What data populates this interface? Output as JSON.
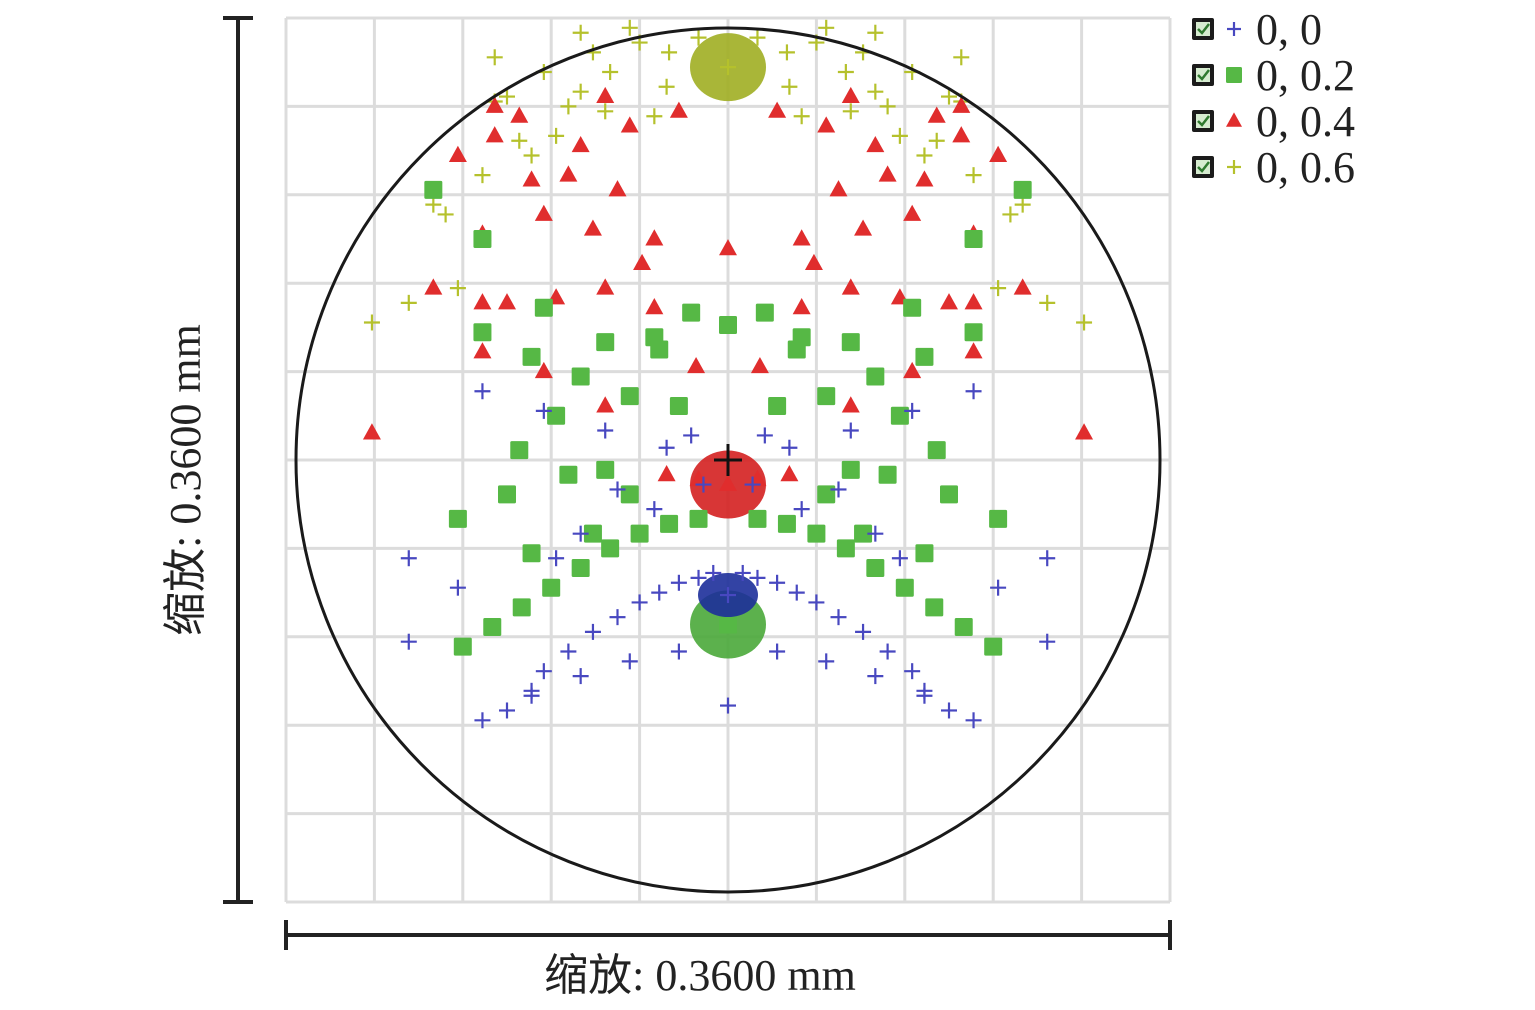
{
  "chart_data": {
    "type": "scatter",
    "title": "",
    "xlabel": "缩放: 0.3600 mm",
    "ylabel": "缩放: 0.3600 mm",
    "units": "mm",
    "scale_mm": 0.36,
    "grid": true,
    "grid_divisions": 10,
    "airy_circle": true,
    "legend_position": "top-right",
    "xlim": [
      -0.18,
      0.18
    ],
    "ylim": [
      -0.18,
      0.18
    ],
    "series": [
      {
        "name": "0, 0",
        "marker": "plus",
        "color": "#4848c0",
        "core_color": "#1d2f9a",
        "x": [
          0,
          -0.006,
          0.006,
          -0.012,
          0.012,
          -0.02,
          0.02,
          -0.028,
          0.028,
          -0.036,
          0.036,
          -0.045,
          0.045,
          -0.055,
          0.055,
          -0.065,
          0.065,
          -0.075,
          0.075,
          -0.08,
          0.08,
          -0.09,
          0.09,
          -0.11,
          0.11,
          -0.02,
          0.02,
          -0.04,
          0.04,
          -0.06,
          0.06,
          -0.08,
          0.08,
          -0.1,
          0.1,
          -0.13,
          0.13,
          0,
          -0.025,
          0.025,
          -0.05,
          0.05,
          -0.075,
          0.075,
          -0.1,
          0.1,
          -0.06,
          0.06,
          -0.03,
          0.03,
          -0.045,
          0.045,
          -0.07,
          0.07,
          -0.13,
          0.13,
          -0.01,
          0.01,
          -0.015,
          0.015
        ],
        "y": [
          -0.055,
          -0.046,
          -0.046,
          -0.048,
          -0.048,
          -0.05,
          -0.05,
          -0.054,
          -0.054,
          -0.058,
          -0.058,
          -0.064,
          -0.064,
          -0.07,
          -0.07,
          -0.078,
          -0.078,
          -0.086,
          -0.086,
          -0.094,
          -0.094,
          -0.102,
          -0.102,
          -0.052,
          -0.052,
          -0.078,
          -0.078,
          -0.082,
          -0.082,
          -0.088,
          -0.088,
          -0.096,
          -0.096,
          -0.106,
          -0.106,
          -0.074,
          -0.074,
          -0.1,
          0.005,
          0.005,
          0.012,
          0.012,
          0.02,
          0.02,
          0.028,
          0.028,
          -0.03,
          -0.03,
          -0.02,
          -0.02,
          -0.012,
          -0.012,
          -0.04,
          -0.04,
          -0.04,
          -0.04,
          -0.01,
          -0.01,
          0.01,
          0.01
        ]
      },
      {
        "name": "0, 0.2",
        "marker": "square",
        "color": "#56b845",
        "core_color": "#4aa83a",
        "x": [
          0,
          -0.012,
          0.012,
          -0.024,
          0.024,
          -0.036,
          0.036,
          -0.048,
          0.048,
          -0.06,
          0.06,
          -0.072,
          0.072,
          -0.084,
          0.084,
          -0.096,
          0.096,
          -0.108,
          0.108,
          -0.02,
          0.02,
          -0.04,
          0.04,
          -0.06,
          0.06,
          -0.08,
          0.08,
          -0.1,
          0.1,
          -0.055,
          0.055,
          -0.08,
          0.08,
          -0.04,
          0.04,
          -0.065,
          0.065,
          -0.09,
          0.09,
          -0.11,
          0.11,
          -0.03,
          0.03,
          -0.05,
          0.05,
          -0.075,
          0.075,
          -0.1,
          0.1,
          -0.12,
          0.12,
          -0.085,
          0.085,
          -0.07,
          0.07,
          -0.05,
          0.05,
          -0.028,
          0.028,
          0,
          -0.015,
          0.015
        ],
        "y": [
          -0.067,
          -0.024,
          -0.024,
          -0.026,
          -0.026,
          -0.03,
          -0.03,
          -0.036,
          -0.036,
          -0.044,
          -0.044,
          -0.052,
          -0.052,
          -0.06,
          -0.06,
          -0.068,
          -0.068,
          -0.076,
          -0.076,
          0.022,
          0.022,
          0.026,
          0.026,
          0.034,
          0.034,
          0.042,
          0.042,
          0.052,
          0.052,
          -0.03,
          -0.03,
          -0.038,
          -0.038,
          -0.014,
          -0.014,
          -0.006,
          -0.006,
          -0.014,
          -0.014,
          -0.024,
          -0.024,
          0.05,
          0.05,
          0.048,
          0.048,
          0.062,
          0.062,
          0.09,
          0.09,
          0.11,
          0.11,
          0.004,
          0.004,
          0.018,
          0.018,
          -0.004,
          -0.004,
          0.045,
          0.045,
          0.055,
          0.06,
          0.06
        ]
      },
      {
        "name": "0, 0.4",
        "marker": "triangle",
        "color": "#e02d2d",
        "core_color": "#d42020",
        "x": [
          0,
          -0.012,
          0.012,
          -0.025,
          0.025,
          -0.05,
          0.05,
          -0.075,
          0.075,
          -0.1,
          0.1,
          -0.09,
          0.09,
          -0.07,
          0.07,
          -0.05,
          0.05,
          -0.03,
          0.03,
          -0.013,
          0.013,
          -0.045,
          0.045,
          -0.08,
          0.08,
          -0.11,
          0.11,
          -0.095,
          0.095,
          -0.06,
          0.06,
          -0.085,
          0.085,
          -0.04,
          0.04,
          -0.02,
          0.02,
          -0.1,
          0.1,
          -0.12,
          0.12,
          -0.1,
          0.1,
          -0.145,
          0.145,
          -0.055,
          0.055,
          -0.035,
          0.035,
          -0.075,
          0.075,
          -0.05,
          0.05,
          0,
          -0.03,
          0.03,
          -0.065,
          0.065,
          -0.095,
          0.095
        ],
        "y": [
          -0.01,
          -0.008,
          -0.008,
          -0.006,
          -0.006,
          0.022,
          0.022,
          0.036,
          0.036,
          0.044,
          0.044,
          0.064,
          0.064,
          0.066,
          0.066,
          0.07,
          0.07,
          0.062,
          0.062,
          0.038,
          0.038,
          0.11,
          0.11,
          0.114,
          0.114,
          0.124,
          0.124,
          0.132,
          0.132,
          0.128,
          0.128,
          0.14,
          0.14,
          0.136,
          0.136,
          0.142,
          0.142,
          0.092,
          0.092,
          0.07,
          0.07,
          0.064,
          0.064,
          0.011,
          0.011,
          0.094,
          0.094,
          0.08,
          0.08,
          0.1,
          0.1,
          0.148,
          0.148,
          0.086,
          0.09,
          0.09,
          0.116,
          0.116,
          0.144,
          0.144
        ]
      },
      {
        "name": "0, 0.6",
        "marker": "plus",
        "color": "#b5c12c",
        "core_color": "#a0ae22",
        "x": [
          0,
          -0.012,
          0.012,
          -0.024,
          0.024,
          -0.036,
          0.036,
          -0.048,
          0.048,
          -0.06,
          0.06,
          -0.07,
          0.07,
          -0.05,
          0.05,
          -0.04,
          0.04,
          -0.03,
          0.03,
          -0.06,
          0.06,
          -0.08,
          0.08,
          -0.1,
          0.1,
          -0.12,
          0.12,
          -0.13,
          0.13,
          -0.09,
          0.09,
          -0.115,
          0.115,
          -0.095,
          0.095,
          -0.075,
          0.075,
          -0.055,
          0.055,
          -0.11,
          0.11,
          -0.145,
          0.145,
          -0.085,
          0.085,
          -0.065,
          0.065,
          -0.025,
          0.025,
          -0.095,
          0.095
        ],
        "y": [
          0.16,
          0.172,
          0.172,
          0.166,
          0.166,
          0.17,
          0.17,
          0.158,
          0.158,
          0.15,
          0.15,
          0.132,
          0.132,
          0.142,
          0.142,
          0.176,
          0.176,
          0.14,
          0.14,
          0.174,
          0.174,
          0.124,
          0.124,
          0.116,
          0.116,
          0.104,
          0.104,
          0.064,
          0.064,
          0.148,
          0.148,
          0.1,
          0.1,
          0.146,
          0.146,
          0.158,
          0.158,
          0.166,
          0.166,
          0.07,
          0.07,
          0.056,
          0.056,
          0.13,
          0.13,
          0.144,
          0.144,
          0.152,
          0.152,
          0.164,
          0.164
        ]
      }
    ]
  }
}
